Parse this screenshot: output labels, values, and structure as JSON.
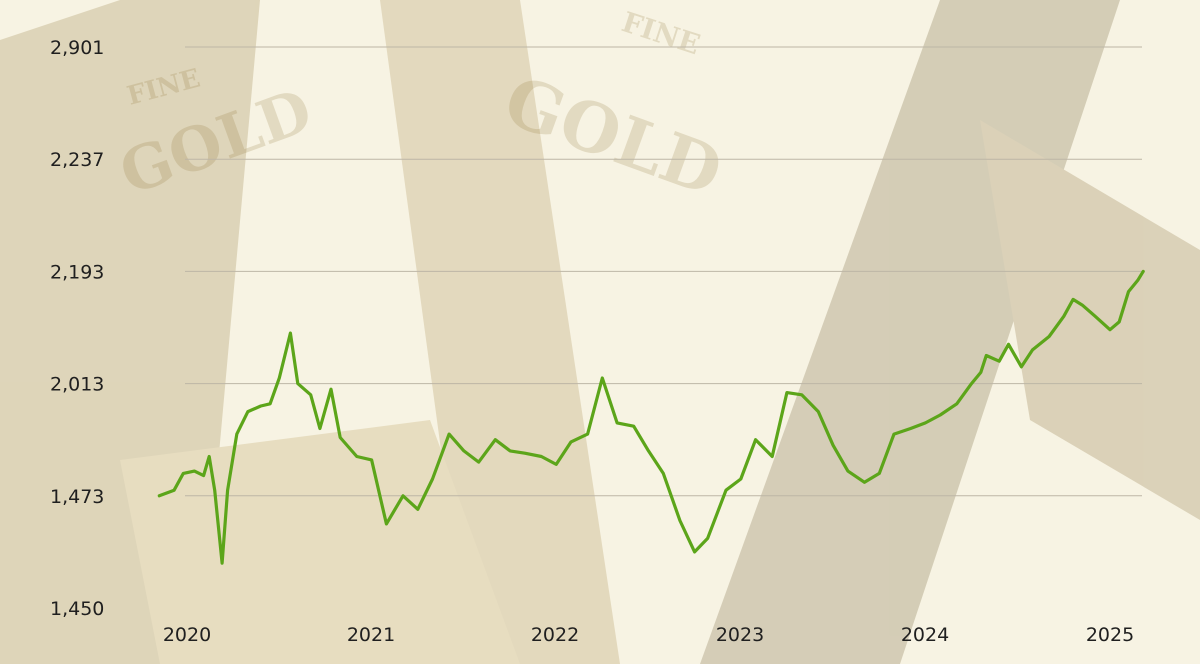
{
  "chart_data": {
    "type": "line",
    "title": "",
    "xlabel": "",
    "ylabel": "",
    "grid": true,
    "x_tick_labels": [
      "2020",
      "2021",
      "2022",
      "2023",
      "2024",
      "2025"
    ],
    "y_tick_labels": [
      "1,450",
      "1,473",
      "2,013",
      "2,193",
      "2,237",
      "2,901"
    ],
    "series": [
      {
        "color": "#5ca51a",
        "points": [
          [
            2019.85,
            1.0
          ],
          [
            2019.93,
            1.05
          ],
          [
            2019.98,
            1.2
          ],
          [
            2020.04,
            1.22
          ],
          [
            2020.09,
            1.18
          ],
          [
            2020.12,
            1.35
          ],
          [
            2020.15,
            1.05
          ],
          [
            2020.19,
            0.4
          ],
          [
            2020.22,
            1.05
          ],
          [
            2020.27,
            1.55
          ],
          [
            2020.33,
            1.75
          ],
          [
            2020.4,
            1.8
          ],
          [
            2020.45,
            1.82
          ],
          [
            2020.5,
            2.05
          ],
          [
            2020.56,
            2.45
          ],
          [
            2020.6,
            2.0
          ],
          [
            2020.67,
            1.9
          ],
          [
            2020.72,
            1.6
          ],
          [
            2020.78,
            1.95
          ],
          [
            2020.83,
            1.52
          ],
          [
            2020.92,
            1.35
          ],
          [
            2021.0,
            1.32
          ],
          [
            2021.08,
            0.75
          ],
          [
            2021.17,
            1.0
          ],
          [
            2021.25,
            0.88
          ],
          [
            2021.33,
            1.15
          ],
          [
            2021.42,
            1.55
          ],
          [
            2021.5,
            1.4
          ],
          [
            2021.58,
            1.3
          ],
          [
            2021.67,
            1.5
          ],
          [
            2021.75,
            1.4
          ],
          [
            2021.83,
            1.38
          ],
          [
            2021.92,
            1.35
          ],
          [
            2022.0,
            1.28
          ],
          [
            2022.08,
            1.48
          ],
          [
            2022.17,
            1.55
          ],
          [
            2022.25,
            2.05
          ],
          [
            2022.33,
            1.65
          ],
          [
            2022.42,
            1.62
          ],
          [
            2022.5,
            1.4
          ],
          [
            2022.58,
            1.2
          ],
          [
            2022.67,
            0.78
          ],
          [
            2022.75,
            0.5
          ],
          [
            2022.82,
            0.62
          ],
          [
            2022.92,
            1.05
          ],
          [
            2023.0,
            1.15
          ],
          [
            2023.08,
            1.5
          ],
          [
            2023.17,
            1.35
          ],
          [
            2023.25,
            1.92
          ],
          [
            2023.33,
            1.9
          ],
          [
            2023.42,
            1.75
          ],
          [
            2023.5,
            1.45
          ],
          [
            2023.58,
            1.22
          ],
          [
            2023.67,
            1.12
          ],
          [
            2023.75,
            1.2
          ],
          [
            2023.83,
            1.55
          ],
          [
            2023.92,
            1.6
          ],
          [
            2024.0,
            1.65
          ],
          [
            2024.08,
            1.72
          ],
          [
            2024.17,
            1.82
          ],
          [
            2024.25,
            2.0
          ],
          [
            2024.3,
            2.1
          ],
          [
            2024.33,
            2.25
          ],
          [
            2024.4,
            2.2
          ],
          [
            2024.45,
            2.35
          ],
          [
            2024.52,
            2.15
          ],
          [
            2024.58,
            2.3
          ],
          [
            2024.67,
            2.42
          ],
          [
            2024.75,
            2.6
          ],
          [
            2024.8,
            2.75
          ],
          [
            2024.85,
            2.7
          ],
          [
            2024.92,
            2.6
          ],
          [
            2025.0,
            2.48
          ],
          [
            2025.05,
            2.55
          ],
          [
            2025.1,
            2.82
          ],
          [
            2025.15,
            2.92
          ],
          [
            2025.18,
            3.0
          ]
        ]
      }
    ]
  }
}
